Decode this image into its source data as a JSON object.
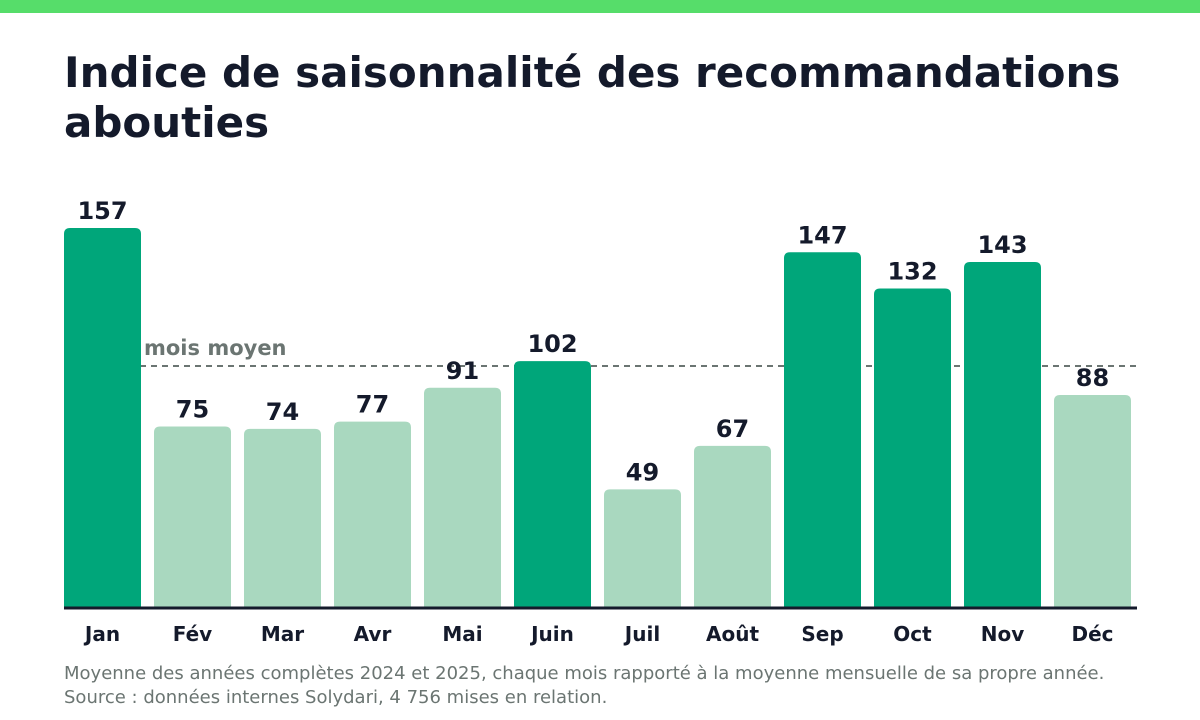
{
  "colors": {
    "top_bar": "#56dd6a",
    "bar_high": "#00a67a",
    "bar_low": "#a9d8bf",
    "label_text": "#141a2b",
    "reference_line": "#6b7572",
    "axis_line": "#141a2b"
  },
  "chart_data": {
    "type": "bar",
    "title": "Indice de saisonnalité des recommandations abouties",
    "categories": [
      "Jan",
      "Fév",
      "Mar",
      "Avr",
      "Mai",
      "Juin",
      "Juil",
      "Août",
      "Sep",
      "Oct",
      "Nov",
      "Déc"
    ],
    "values": [
      157,
      75,
      74,
      77,
      91,
      102,
      49,
      67,
      147,
      132,
      143,
      88
    ],
    "reference_line": {
      "value": 100,
      "label": "mois moyen",
      "style": "dashed"
    },
    "highlight_rule": "bars at or above the average month in dark green, below in light green",
    "ylim": [
      0,
      157
    ],
    "grid": false,
    "legend": "none",
    "footnote": "Moyenne des années complètes 2024 et 2025, chaque mois rapporté à la moyenne mensuelle de sa propre année. Source : données internes Solydari, 4 756 mises en relation."
  }
}
